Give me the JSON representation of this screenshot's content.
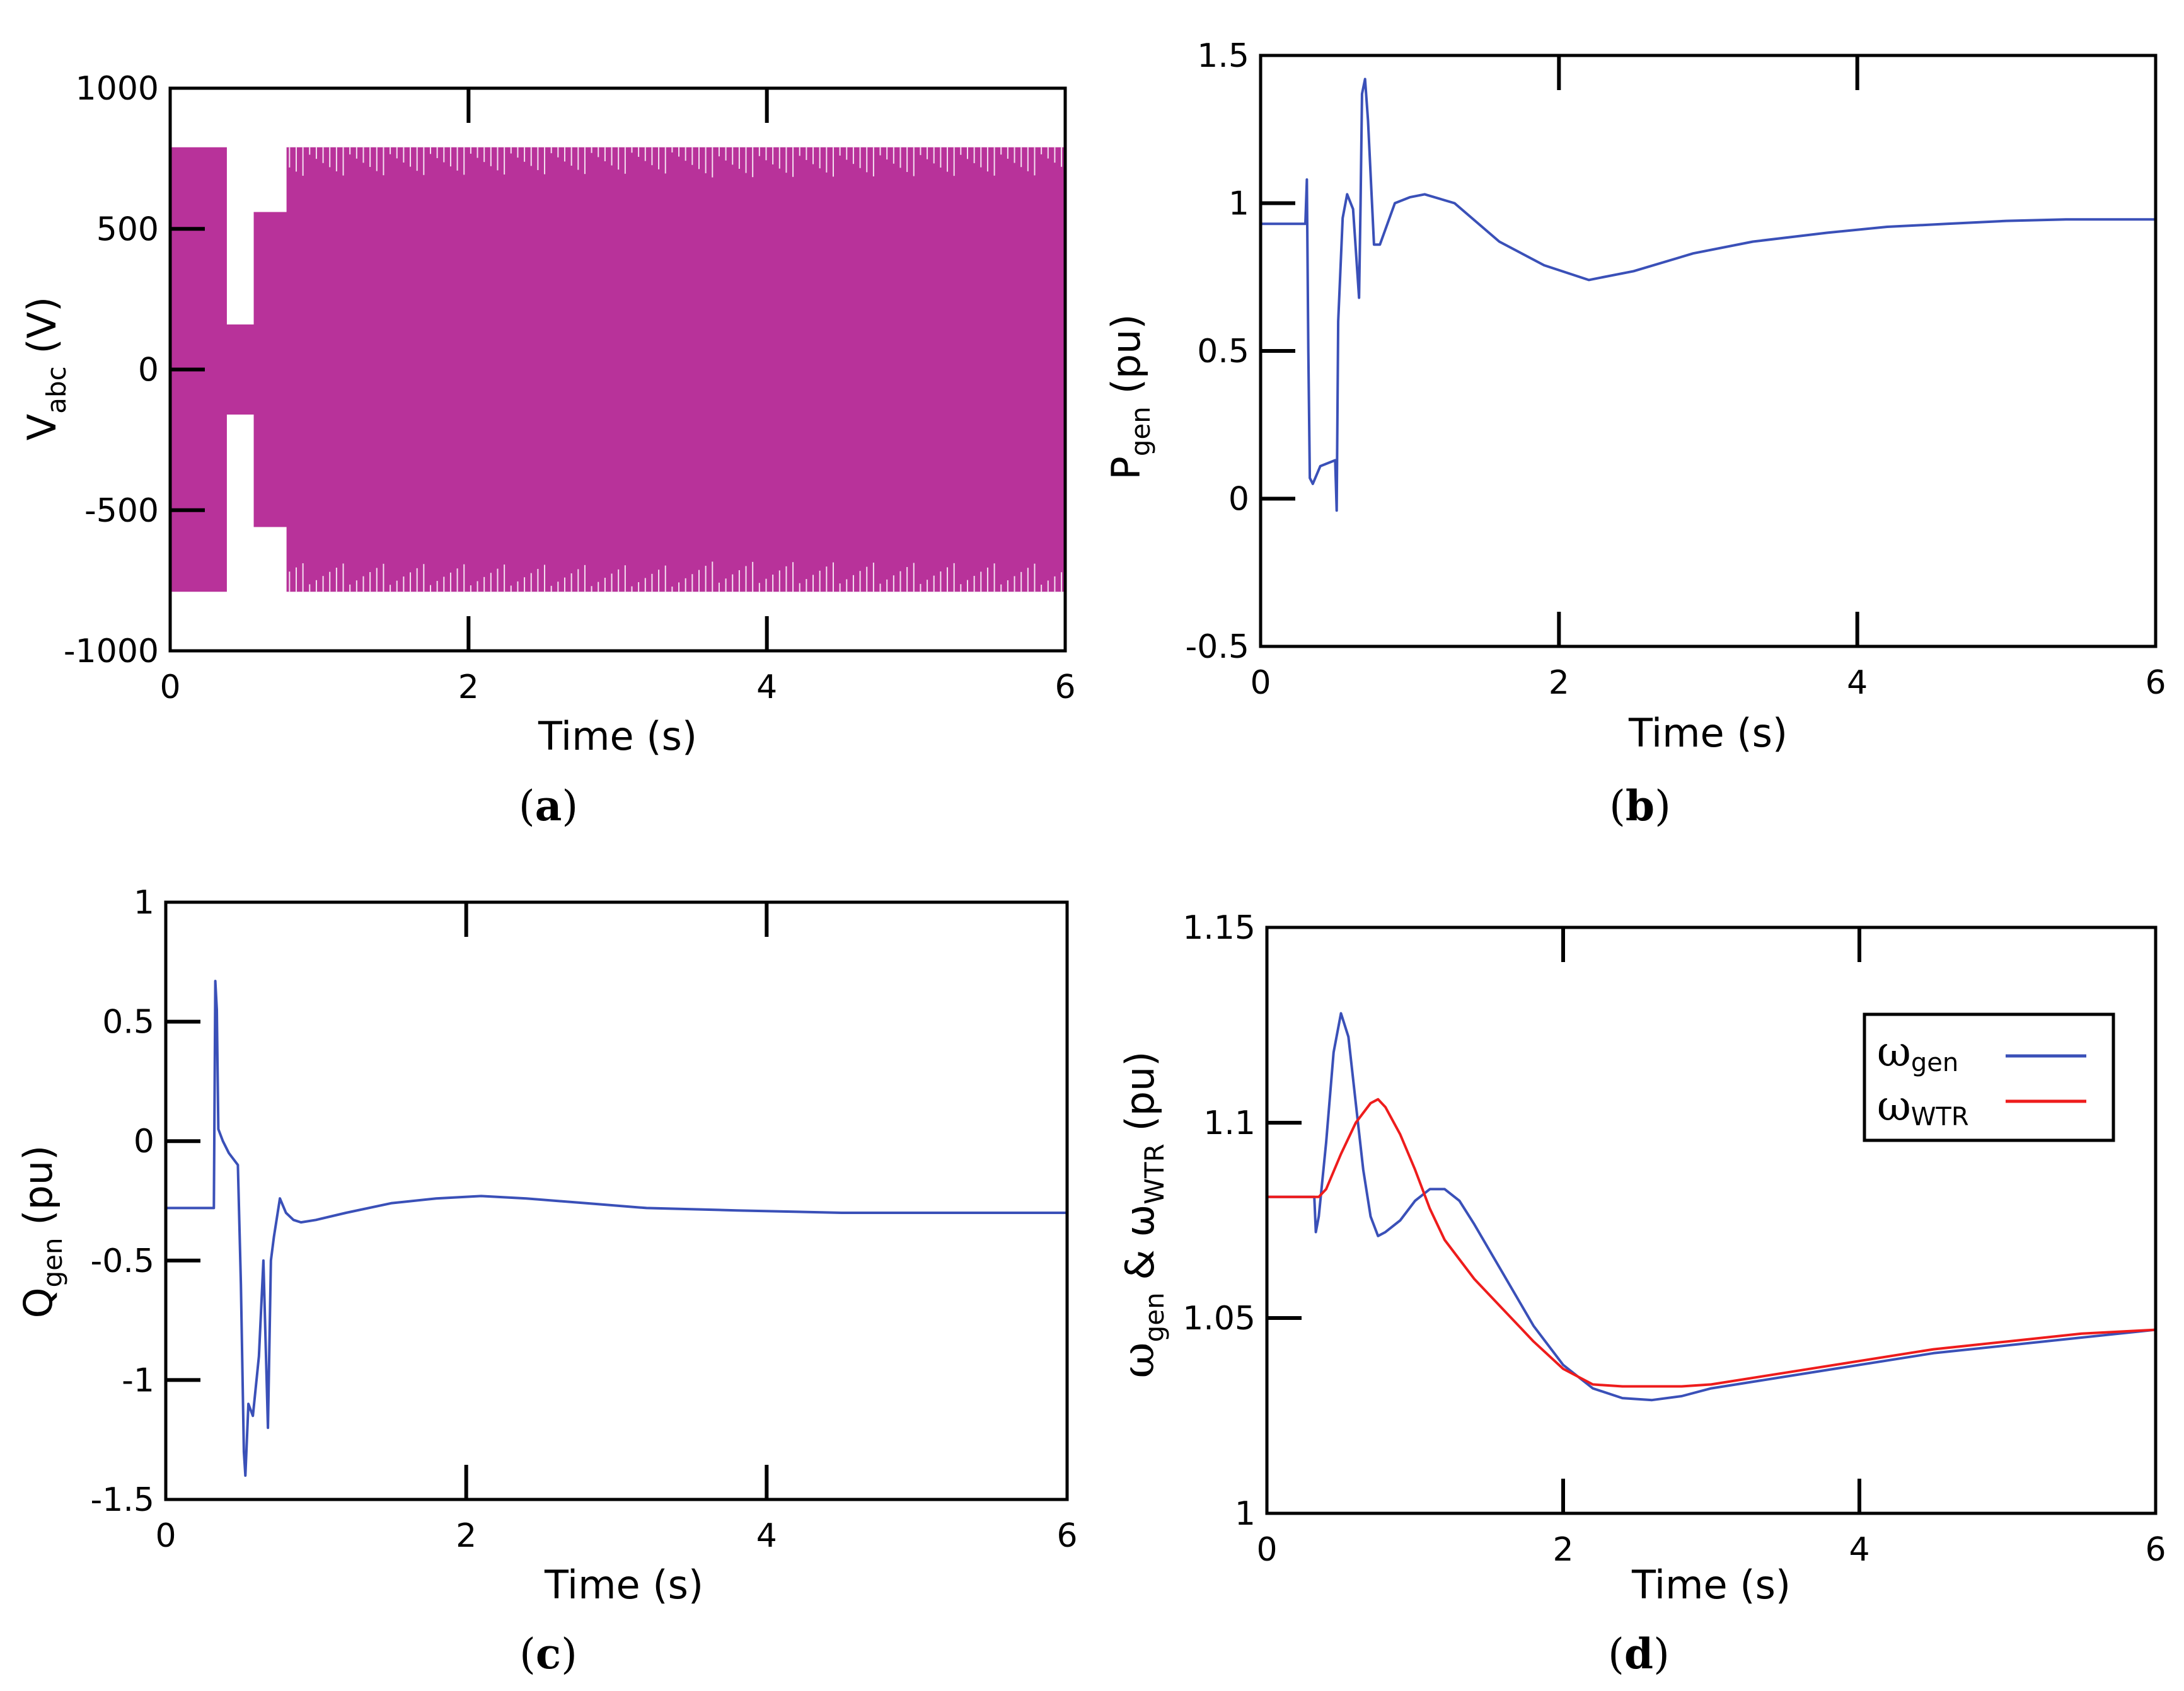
{
  "colors": {
    "magenta": "#B8329A",
    "blue": "#3A50B8",
    "red": "#EE1C1C"
  },
  "chart_data": [
    {
      "id": "a",
      "type": "line",
      "caption": "a",
      "xlabel": "Time (s)",
      "ylabel_main": "V",
      "ylabel_sub": "abc",
      "ylabel_tail": " (V)",
      "xlim": [
        0,
        6
      ],
      "ylim": [
        -1000,
        1000
      ],
      "xticks": [
        0,
        2,
        4,
        6
      ],
      "xtick_labels": [
        "0",
        "2",
        "4",
        "6"
      ],
      "yticks": [
        1000,
        500,
        0,
        -500,
        -1000
      ],
      "ytick_labels": [
        "1000",
        "500",
        "0",
        "-500",
        "-1000"
      ],
      "series": [
        {
          "name": "Vabc envelope upper",
          "color": "magenta",
          "x": [
            0,
            0.38,
            0.38,
            0.56,
            0.56,
            0.78,
            0.78,
            6
          ],
          "y": [
            790,
            790,
            160,
            160,
            560,
            560,
            790,
            790
          ]
        },
        {
          "name": "Vabc envelope lower",
          "color": "magenta",
          "x": [
            0,
            0.38,
            0.38,
            0.56,
            0.56,
            0.78,
            0.78,
            6
          ],
          "y": [
            -790,
            -790,
            -160,
            -160,
            -560,
            -560,
            -790,
            -790
          ]
        }
      ]
    },
    {
      "id": "b",
      "type": "line",
      "caption": "b",
      "xlabel": "Time (s)",
      "ylabel_main": "P",
      "ylabel_sub": "gen",
      "ylabel_tail": " (pu)",
      "xlim": [
        0,
        6
      ],
      "ylim": [
        -0.5,
        1.5
      ],
      "xticks": [
        0,
        2,
        4,
        6
      ],
      "xtick_labels": [
        "0",
        "2",
        "4",
        "6"
      ],
      "yticks": [
        1.5,
        1,
        0.5,
        0,
        -0.5
      ],
      "ytick_labels": [
        "1.5",
        "1",
        "0.5",
        "0",
        "-0.5"
      ],
      "series": [
        {
          "name": "Pgen",
          "color": "blue",
          "x": [
            0,
            0.3,
            0.31,
            0.32,
            0.33,
            0.35,
            0.4,
            0.5,
            0.51,
            0.52,
            0.55,
            0.58,
            0.62,
            0.66,
            0.67,
            0.68,
            0.7,
            0.72,
            0.76,
            0.8,
            0.9,
            1.0,
            1.1,
            1.3,
            1.6,
            1.9,
            2.2,
            2.5,
            2.9,
            3.3,
            3.8,
            4.2,
            4.6,
            5.0,
            5.4,
            6.0
          ],
          "y": [
            0.93,
            0.93,
            1.08,
            0.5,
            0.07,
            0.05,
            0.11,
            0.13,
            -0.04,
            0.6,
            0.95,
            1.03,
            0.98,
            0.68,
            1.0,
            1.37,
            1.42,
            1.28,
            0.86,
            0.86,
            1.0,
            1.02,
            1.03,
            1.0,
            0.87,
            0.79,
            0.74,
            0.77,
            0.83,
            0.87,
            0.9,
            0.92,
            0.93,
            0.94,
            0.945,
            0.945
          ]
        }
      ]
    },
    {
      "id": "c",
      "type": "line",
      "caption": "c",
      "xlabel": "Time (s)",
      "ylabel_main": "Q",
      "ylabel_sub": "gen",
      "ylabel_tail": " (pu)",
      "xlim": [
        0,
        6
      ],
      "ylim": [
        -1.5,
        1
      ],
      "xticks": [
        0,
        2,
        4,
        6
      ],
      "xtick_labels": [
        "0",
        "2",
        "4",
        "6"
      ],
      "yticks": [
        1,
        0.5,
        0,
        -0.5,
        -1,
        -1.5
      ],
      "ytick_labels": [
        "1",
        "0.5",
        "0",
        "-0.5",
        "-1",
        "-1.5"
      ],
      "series": [
        {
          "name": "Qgen",
          "color": "blue",
          "x": [
            0,
            0.32,
            0.33,
            0.34,
            0.35,
            0.38,
            0.42,
            0.48,
            0.5,
            0.52,
            0.53,
            0.55,
            0.58,
            0.62,
            0.65,
            0.68,
            0.7,
            0.72,
            0.76,
            0.8,
            0.85,
            0.9,
            1.0,
            1.2,
            1.5,
            1.8,
            2.1,
            2.4,
            2.8,
            3.2,
            3.8,
            4.5,
            5.2,
            6.0
          ],
          "y": [
            -0.28,
            -0.28,
            0.67,
            0.55,
            0.05,
            0.0,
            -0.05,
            -0.1,
            -0.6,
            -1.3,
            -1.4,
            -1.1,
            -1.15,
            -0.9,
            -0.5,
            -1.2,
            -0.5,
            -0.4,
            -0.24,
            -0.3,
            -0.33,
            -0.34,
            -0.33,
            -0.3,
            -0.26,
            -0.24,
            -0.23,
            -0.24,
            -0.26,
            -0.28,
            -0.29,
            -0.3,
            -0.3,
            -0.3
          ]
        }
      ]
    },
    {
      "id": "d",
      "type": "line",
      "caption": "d",
      "xlabel": "Time (s)",
      "ylabel_text": "ω",
      "ylabel_sub1": "gen",
      "ylabel_mid": " & ω",
      "ylabel_sub2": "WTR",
      "ylabel_tail": " (pu)",
      "xlim": [
        0,
        6
      ],
      "ylim": [
        1,
        1.15
      ],
      "xticks": [
        0,
        2,
        4,
        6
      ],
      "xtick_labels": [
        "0",
        "2",
        "4",
        "6"
      ],
      "yticks": [
        1.15,
        1.1,
        1.05,
        1
      ],
      "ytick_labels": [
        "1.15",
        "1.1",
        "1.05",
        "1"
      ],
      "legend": {
        "position": "top-right",
        "entries": [
          {
            "label_main": "ω",
            "label_sub": "gen",
            "color": "blue"
          },
          {
            "label_main": "ω",
            "label_sub": "WTR",
            "color": "red"
          }
        ]
      },
      "series": [
        {
          "name": "ωgen",
          "color": "blue",
          "x": [
            0,
            0.32,
            0.33,
            0.35,
            0.4,
            0.45,
            0.5,
            0.55,
            0.6,
            0.65,
            0.7,
            0.75,
            0.8,
            0.9,
            1.0,
            1.1,
            1.2,
            1.3,
            1.4,
            1.6,
            1.8,
            2.0,
            2.2,
            2.4,
            2.6,
            2.8,
            3.0,
            3.5,
            4.0,
            4.5,
            5.0,
            5.5,
            6.0
          ],
          "y": [
            1.081,
            1.081,
            1.072,
            1.076,
            1.095,
            1.118,
            1.128,
            1.122,
            1.105,
            1.088,
            1.076,
            1.071,
            1.072,
            1.075,
            1.08,
            1.083,
            1.083,
            1.08,
            1.074,
            1.061,
            1.048,
            1.038,
            1.032,
            1.0295,
            1.029,
            1.03,
            1.032,
            1.035,
            1.038,
            1.041,
            1.043,
            1.045,
            1.047
          ]
        },
        {
          "name": "ωWTR",
          "color": "red",
          "x": [
            0,
            0.35,
            0.4,
            0.5,
            0.6,
            0.7,
            0.75,
            0.8,
            0.9,
            1.0,
            1.1,
            1.2,
            1.4,
            1.6,
            1.8,
            2.0,
            2.2,
            2.4,
            2.6,
            2.8,
            3.0,
            3.5,
            4.0,
            4.5,
            5.0,
            5.5,
            6.0
          ],
          "y": [
            1.081,
            1.081,
            1.083,
            1.092,
            1.1,
            1.105,
            1.106,
            1.104,
            1.097,
            1.088,
            1.078,
            1.07,
            1.06,
            1.052,
            1.044,
            1.037,
            1.033,
            1.0325,
            1.0325,
            1.0325,
            1.033,
            1.036,
            1.039,
            1.042,
            1.044,
            1.046,
            1.047
          ]
        }
      ]
    }
  ]
}
